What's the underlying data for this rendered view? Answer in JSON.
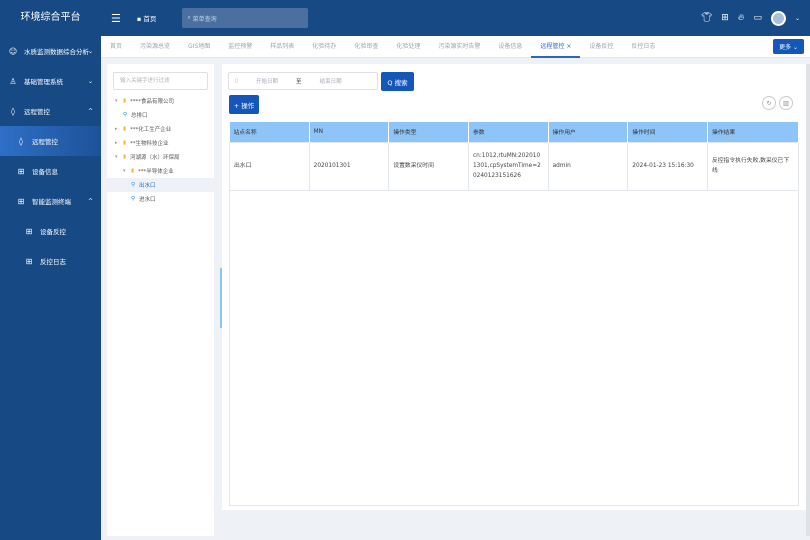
{
  "app": {
    "title": "环境综合平台"
  },
  "header": {
    "home": "首页",
    "search_placeholder": "菜单查询",
    "icons": [
      "shirt-icon",
      "grid-icon",
      "fire-icon",
      "monitor-icon",
      "avatar"
    ]
  },
  "sidebar": {
    "items": [
      {
        "label": "水质监测数据综合分析",
        "icon": "user-group-icon",
        "chevron": "⌄"
      },
      {
        "label": "基础管理系统",
        "icon": "org-icon",
        "chevron": "⌄"
      },
      {
        "label": "远程管控",
        "icon": "drop-icon",
        "chevron": "^"
      },
      {
        "label": "远程管控",
        "icon": "drop-icon",
        "active": true
      },
      {
        "label": "设备信息",
        "icon": "grid-icon"
      },
      {
        "label": "智能监测终端",
        "icon": "grid-icon",
        "chevron": "^"
      },
      {
        "label": "设备反控",
        "icon": "grid-icon"
      },
      {
        "label": "反控日志",
        "icon": "grid-icon"
      }
    ]
  },
  "tabs": {
    "items": [
      "首页",
      "污染源总览",
      "GIS地图",
      "监控预警",
      "样品列表",
      "化验待办",
      "化验审查",
      "化验处理",
      "污染源实时告警",
      "设备信息",
      "远程管控",
      "设备反控",
      "反控日志"
    ],
    "active": "远程管控",
    "close": "×",
    "more": "更多 ⌄"
  },
  "tree": {
    "filter_placeholder": "输入关键字进行过滤",
    "nodes": [
      {
        "label": "****食品有限公司",
        "type": "folder",
        "level": 0,
        "expanded": true
      },
      {
        "label": "总排口",
        "type": "pin",
        "level": 1
      },
      {
        "label": "***化工生产企业",
        "type": "folder",
        "level": 0
      },
      {
        "label": "**生物科技企业",
        "type": "folder",
        "level": 0
      },
      {
        "label": "河湖源（水）环保局",
        "type": "folder",
        "level": 0,
        "expanded": true
      },
      {
        "label": "***半导体企业",
        "type": "folder",
        "level": 1,
        "expanded": true
      },
      {
        "label": "出水口",
        "type": "pin",
        "level": 2,
        "selected": true
      },
      {
        "label": "进水口",
        "type": "pin",
        "level": 2
      }
    ]
  },
  "filters": {
    "start_placeholder": "开始日期",
    "separator": "至",
    "end_placeholder": "结束日期",
    "search_button": "Q 搜索",
    "add_button": "+ 操作"
  },
  "table": {
    "columns": [
      "站点名称",
      "MN",
      "操作类型",
      "参数",
      "操作用户",
      "操作时间",
      "操作结果"
    ],
    "rows": [
      [
        "出水口",
        "2020101301",
        "设置数采仪时间",
        "cn:1012,rtuMN:2020101301,cpSystemTime=20240123151626",
        "admin",
        "2024-01-23 15:16:30",
        "反控指令执行失败,数采仪已下线"
      ]
    ]
  },
  "colors": {
    "sidebar": "#174a85",
    "accent": "#1557b8",
    "table_header": "#8ec5f8"
  }
}
